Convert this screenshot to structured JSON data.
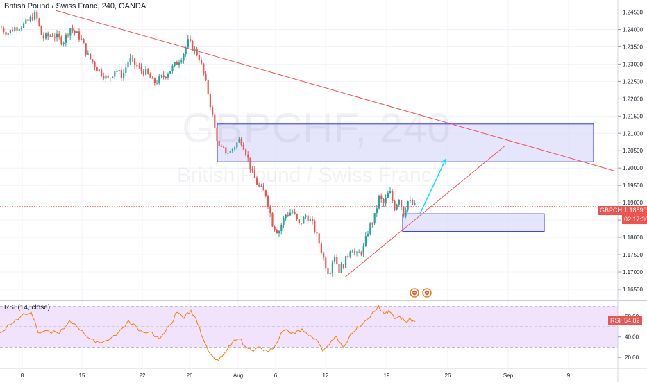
{
  "chart": {
    "title": "British Pound / Swiss Franc, 240, OANDA",
    "watermark_symbol": "GBPCHF, 240",
    "watermark_name": "British Pound / Swiss Franc",
    "symbol_tag": "GBPCHF",
    "price_tag": "1.18890",
    "countdown": "02:17:36",
    "rsi_title": "RSI (14, close)",
    "rsi_value": "54.82"
  },
  "colors": {
    "up": "#26a69a",
    "down": "#ef5350",
    "trendline": "#ef5350",
    "zone_border": "#2a2aff",
    "zone_fill": "#dcdcfb",
    "arrow": "#00e5ff",
    "rsi_line": "#f57c00",
    "rsi_band": "#f1e3fc",
    "price_tag_bg": "#ef5350"
  },
  "chart_data": [
    {
      "type": "candlestick",
      "title": "British Pound / Swiss Franc, 240, OANDA",
      "xlabel": "",
      "ylabel": "",
      "x_ticks": [
        "8",
        "15",
        "22",
        "26",
        "Aug",
        "6",
        "12",
        "19",
        "26",
        "Sep",
        "9"
      ],
      "y_ticks": [
        "1.16500",
        "1.17000",
        "1.17500",
        "1.18000",
        "1.18500",
        "1.19000",
        "1.19500",
        "1.20000",
        "1.20500",
        "1.21000",
        "1.21500",
        "1.22000",
        "1.22500",
        "1.23000",
        "1.23500",
        "1.24000",
        "1.24500"
      ],
      "ylim": [
        1.162,
        1.2485
      ],
      "last_price": 1.1889,
      "path": [
        {
          "x": 0,
          "y": 1.2405
        },
        {
          "x": 10,
          "y": 1.239
        },
        {
          "x": 20,
          "y": 1.2405
        },
        {
          "x": 35,
          "y": 1.2415
        },
        {
          "x": 50,
          "y": 1.2445
        },
        {
          "x": 60,
          "y": 1.2375
        },
        {
          "x": 75,
          "y": 1.2385
        },
        {
          "x": 90,
          "y": 1.2365
        },
        {
          "x": 100,
          "y": 1.2405
        },
        {
          "x": 115,
          "y": 1.2375
        },
        {
          "x": 125,
          "y": 1.2325
        },
        {
          "x": 140,
          "y": 1.2285
        },
        {
          "x": 155,
          "y": 1.2255
        },
        {
          "x": 165,
          "y": 1.2285
        },
        {
          "x": 175,
          "y": 1.2265
        },
        {
          "x": 185,
          "y": 1.2315
        },
        {
          "x": 200,
          "y": 1.2285
        },
        {
          "x": 210,
          "y": 1.2275
        },
        {
          "x": 220,
          "y": 1.2245
        },
        {
          "x": 235,
          "y": 1.2265
        },
        {
          "x": 250,
          "y": 1.2295
        },
        {
          "x": 262,
          "y": 1.2325
        },
        {
          "x": 270,
          "y": 1.2365
        },
        {
          "x": 285,
          "y": 1.2325
        },
        {
          "x": 293,
          "y": 1.2265
        },
        {
          "x": 300,
          "y": 1.2205
        },
        {
          "x": 307,
          "y": 1.2125
        },
        {
          "x": 315,
          "y": 1.2055
        },
        {
          "x": 330,
          "y": 1.2045
        },
        {
          "x": 345,
          "y": 1.2085
        },
        {
          "x": 352,
          "y": 1.2055
        },
        {
          "x": 362,
          "y": 1.1985
        },
        {
          "x": 372,
          "y": 1.1945
        },
        {
          "x": 382,
          "y": 1.1925
        },
        {
          "x": 392,
          "y": 1.1835
        },
        {
          "x": 400,
          "y": 1.1815
        },
        {
          "x": 410,
          "y": 1.1865
        },
        {
          "x": 420,
          "y": 1.1875
        },
        {
          "x": 430,
          "y": 1.1835
        },
        {
          "x": 440,
          "y": 1.1865
        },
        {
          "x": 450,
          "y": 1.1835
        },
        {
          "x": 460,
          "y": 1.1775
        },
        {
          "x": 467,
          "y": 1.1725
        },
        {
          "x": 473,
          "y": 1.1695
        },
        {
          "x": 480,
          "y": 1.1755
        },
        {
          "x": 487,
          "y": 1.1705
        },
        {
          "x": 495,
          "y": 1.1725
        },
        {
          "x": 505,
          "y": 1.1775
        },
        {
          "x": 512,
          "y": 1.1745
        },
        {
          "x": 522,
          "y": 1.1765
        },
        {
          "x": 530,
          "y": 1.1825
        },
        {
          "x": 538,
          "y": 1.1855
        },
        {
          "x": 545,
          "y": 1.1915
        },
        {
          "x": 552,
          "y": 1.1895
        },
        {
          "x": 560,
          "y": 1.1935
        },
        {
          "x": 567,
          "y": 1.1885
        },
        {
          "x": 574,
          "y": 1.1915
        },
        {
          "x": 580,
          "y": 1.1865
        },
        {
          "x": 586,
          "y": 1.1905
        },
        {
          "x": 592,
          "y": 1.1895
        },
        {
          "x": 598,
          "y": 1.1889
        }
      ]
    },
    {
      "type": "line",
      "title": "RSI (14, close)",
      "y_ticks": [
        "20.00",
        "40.00",
        "60.00"
      ],
      "ylim": [
        10,
        75
      ],
      "band": [
        30,
        70
      ],
      "last_value": 54.82,
      "path": [
        {
          "x": 0,
          "y": 44
        },
        {
          "x": 15,
          "y": 52
        },
        {
          "x": 30,
          "y": 60
        },
        {
          "x": 45,
          "y": 64
        },
        {
          "x": 55,
          "y": 44
        },
        {
          "x": 70,
          "y": 46
        },
        {
          "x": 85,
          "y": 43
        },
        {
          "x": 100,
          "y": 56
        },
        {
          "x": 115,
          "y": 47
        },
        {
          "x": 130,
          "y": 38
        },
        {
          "x": 145,
          "y": 34
        },
        {
          "x": 160,
          "y": 39
        },
        {
          "x": 175,
          "y": 48
        },
        {
          "x": 185,
          "y": 56
        },
        {
          "x": 200,
          "y": 46
        },
        {
          "x": 215,
          "y": 45
        },
        {
          "x": 230,
          "y": 38
        },
        {
          "x": 245,
          "y": 52
        },
        {
          "x": 255,
          "y": 64
        },
        {
          "x": 265,
          "y": 58
        },
        {
          "x": 275,
          "y": 66
        },
        {
          "x": 285,
          "y": 52
        },
        {
          "x": 295,
          "y": 34
        },
        {
          "x": 305,
          "y": 22
        },
        {
          "x": 315,
          "y": 17
        },
        {
          "x": 325,
          "y": 25
        },
        {
          "x": 335,
          "y": 35
        },
        {
          "x": 345,
          "y": 38
        },
        {
          "x": 355,
          "y": 30
        },
        {
          "x": 365,
          "y": 26
        },
        {
          "x": 375,
          "y": 30
        },
        {
          "x": 385,
          "y": 26
        },
        {
          "x": 395,
          "y": 30
        },
        {
          "x": 405,
          "y": 44
        },
        {
          "x": 415,
          "y": 46
        },
        {
          "x": 425,
          "y": 43
        },
        {
          "x": 435,
          "y": 48
        },
        {
          "x": 445,
          "y": 41
        },
        {
          "x": 455,
          "y": 38
        },
        {
          "x": 465,
          "y": 26
        },
        {
          "x": 475,
          "y": 33
        },
        {
          "x": 485,
          "y": 40
        },
        {
          "x": 495,
          "y": 30
        },
        {
          "x": 505,
          "y": 43
        },
        {
          "x": 515,
          "y": 50
        },
        {
          "x": 525,
          "y": 55
        },
        {
          "x": 535,
          "y": 62
        },
        {
          "x": 545,
          "y": 71
        },
        {
          "x": 553,
          "y": 63
        },
        {
          "x": 560,
          "y": 66
        },
        {
          "x": 568,
          "y": 58
        },
        {
          "x": 576,
          "y": 60
        },
        {
          "x": 584,
          "y": 55
        },
        {
          "x": 592,
          "y": 57
        },
        {
          "x": 598,
          "y": 54.82
        }
      ]
    }
  ],
  "drawings": {
    "resistance_line": {
      "x1": 80,
      "y1": 1.2455,
      "x2": 885,
      "y2": 1.1992
    },
    "support_line": {
      "x1": 497,
      "y1": 1.1685,
      "x2": 728,
      "y2": 1.2065
    },
    "upper_zone": {
      "x1": 313,
      "y1": 1.2127,
      "x2": 855,
      "y2": 1.2018
    },
    "lower_zone": {
      "x1": 580,
      "y1": 1.1868,
      "x2": 784,
      "y2": 1.1817
    },
    "arrow": {
      "x1": 605,
      "y1": 1.1868,
      "x2": 642,
      "y2": 1.2025
    },
    "flag_markers": 2
  }
}
